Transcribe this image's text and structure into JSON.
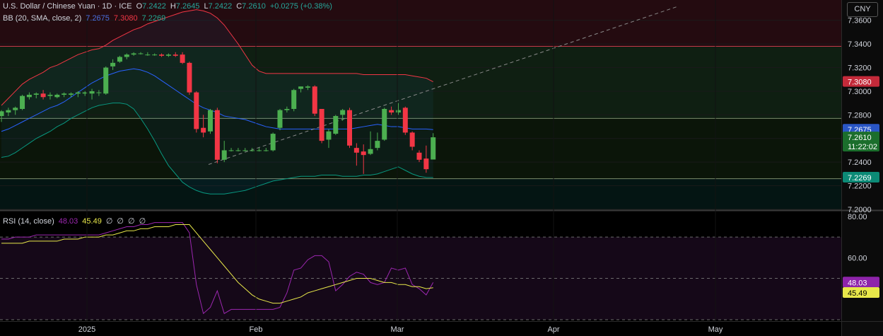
{
  "header": {
    "symbol": "U.S. Dollar / Chinese Yuan · 1D · ICE",
    "ohlc": [
      {
        "label": "O",
        "value": "7.2422"
      },
      {
        "label": "H",
        "value": "7.2645"
      },
      {
        "label": "L",
        "value": "7.2422"
      },
      {
        "label": "C",
        "value": "7.2610"
      }
    ],
    "change": "+0.0275 (+0.38%)",
    "currency": "CNY"
  },
  "bb_legend": {
    "label": "BB (20, SMA, close, 2)",
    "basis": "7.2675",
    "upper": "7.3080",
    "lower": "7.2269"
  },
  "rsi_legend": {
    "label": "RSI (14, close)",
    "rsi": "48.03",
    "rsi_ma": "45.49",
    "extras": [
      "∅",
      "∅",
      "∅",
      "∅"
    ]
  },
  "colors": {
    "up": "#4caf50",
    "down": "#f23645",
    "bb_basis": "#2962ff",
    "bb_upper": "#f23645",
    "bb_lower": "#089981",
    "rsi": "#9c27b0",
    "rsi_ma": "#e8e84a",
    "price_label": "#4caf50",
    "time_label": "#4caf50"
  },
  "price_labels": {
    "bb_upper": "7.3080",
    "bb_basis": "7.2675",
    "last": "7.2610",
    "countdown": "11:22:02",
    "bb_lower": "7.2269"
  },
  "rsi_labels": {
    "rsi": "48.03",
    "rsi_ma": "45.49"
  },
  "chart_data": [
    {
      "type": "candlestick",
      "title": "U.S. Dollar / Chinese Yuan · 1D · ICE",
      "y_ticks": [
        "7.3600",
        "7.3400",
        "7.3200",
        "7.3000",
        "7.2800",
        "7.2600",
        "7.2400",
        "7.2200",
        "7.2000"
      ],
      "ylim": [
        7.2,
        7.37
      ],
      "x_ticks": [
        "2025",
        "Feb",
        "Mar",
        "Apr",
        "May"
      ],
      "horizontal_levels": [
        7.338,
        7.277,
        7.226
      ],
      "candles": [
        {
          "o": 7.279,
          "h": 7.284,
          "l": 7.274,
          "c": 7.283
        },
        {
          "o": 7.282,
          "h": 7.286,
          "l": 7.279,
          "c": 7.284
        },
        {
          "o": 7.284,
          "h": 7.287,
          "l": 7.28,
          "c": 7.286
        },
        {
          "o": 7.285,
          "h": 7.297,
          "l": 7.284,
          "c": 7.296
        },
        {
          "o": 7.295,
          "h": 7.299,
          "l": 7.293,
          "c": 7.297
        },
        {
          "o": 7.297,
          "h": 7.299,
          "l": 7.294,
          "c": 7.298
        },
        {
          "o": 7.298,
          "h": 7.301,
          "l": 7.293,
          "c": 7.295
        },
        {
          "o": 7.296,
          "h": 7.299,
          "l": 7.293,
          "c": 7.297
        },
        {
          "o": 7.295,
          "h": 7.298,
          "l": 7.294,
          "c": 7.297
        },
        {
          "o": 7.297,
          "h": 7.299,
          "l": 7.295,
          "c": 7.298
        },
        {
          "o": 7.297,
          "h": 7.299,
          "l": 7.295,
          "c": 7.298
        },
        {
          "o": 7.298,
          "h": 7.3,
          "l": 7.295,
          "c": 7.299
        },
        {
          "o": 7.298,
          "h": 7.3,
          "l": 7.296,
          "c": 7.299
        },
        {
          "o": 7.298,
          "h": 7.302,
          "l": 7.293,
          "c": 7.3
        },
        {
          "o": 7.299,
          "h": 7.301,
          "l": 7.296,
          "c": 7.299
        },
        {
          "o": 7.298,
          "h": 7.321,
          "l": 7.297,
          "c": 7.32
        },
        {
          "o": 7.321,
          "h": 7.327,
          "l": 7.318,
          "c": 7.324
        },
        {
          "o": 7.325,
          "h": 7.33,
          "l": 7.324,
          "c": 7.329
        },
        {
          "o": 7.329,
          "h": 7.332,
          "l": 7.327,
          "c": 7.331
        },
        {
          "o": 7.331,
          "h": 7.333,
          "l": 7.33,
          "c": 7.332
        },
        {
          "o": 7.332,
          "h": 7.333,
          "l": 7.331,
          "c": 7.332
        },
        {
          "o": 7.331,
          "h": 7.333,
          "l": 7.33,
          "c": 7.331
        },
        {
          "o": 7.331,
          "h": 7.332,
          "l": 7.33,
          "c": 7.331
        },
        {
          "o": 7.331,
          "h": 7.332,
          "l": 7.329,
          "c": 7.33
        },
        {
          "o": 7.33,
          "h": 7.332,
          "l": 7.329,
          "c": 7.331
        },
        {
          "o": 7.331,
          "h": 7.333,
          "l": 7.329,
          "c": 7.33
        },
        {
          "o": 7.331,
          "h": 7.333,
          "l": 7.323,
          "c": 7.324
        },
        {
          "o": 7.324,
          "h": 7.325,
          "l": 7.297,
          "c": 7.299
        },
        {
          "o": 7.299,
          "h": 7.3,
          "l": 7.265,
          "c": 7.268
        },
        {
          "o": 7.269,
          "h": 7.28,
          "l": 7.261,
          "c": 7.265
        },
        {
          "o": 7.266,
          "h": 7.285,
          "l": 7.264,
          "c": 7.284
        },
        {
          "o": 7.284,
          "h": 7.286,
          "l": 7.239,
          "c": 7.242
        },
        {
          "o": 7.242,
          "h": 7.258,
          "l": 7.24,
          "c": 7.25
        },
        {
          "o": 7.25,
          "h": 7.252,
          "l": 7.249,
          "c": 7.25
        },
        {
          "o": 7.25,
          "h": 7.252,
          "l": 7.249,
          "c": 7.25
        },
        {
          "o": 7.25,
          "h": 7.252,
          "l": 7.249,
          "c": 7.25
        },
        {
          "o": 7.25,
          "h": 7.252,
          "l": 7.249,
          "c": 7.25
        },
        {
          "o": 7.25,
          "h": 7.252,
          "l": 7.249,
          "c": 7.25
        },
        {
          "o": 7.25,
          "h": 7.252,
          "l": 7.249,
          "c": 7.25
        },
        {
          "o": 7.25,
          "h": 7.265,
          "l": 7.249,
          "c": 7.264
        },
        {
          "o": 7.269,
          "h": 7.285,
          "l": 7.267,
          "c": 7.284
        },
        {
          "o": 7.284,
          "h": 7.287,
          "l": 7.282,
          "c": 7.285
        },
        {
          "o": 7.285,
          "h": 7.302,
          "l": 7.283,
          "c": 7.301
        },
        {
          "o": 7.302,
          "h": 7.304,
          "l": 7.299,
          "c": 7.304
        },
        {
          "o": 7.303,
          "h": 7.305,
          "l": 7.301,
          "c": 7.304
        },
        {
          "o": 7.304,
          "h": 7.305,
          "l": 7.279,
          "c": 7.281
        },
        {
          "o": 7.285,
          "h": 7.285,
          "l": 7.256,
          "c": 7.258
        },
        {
          "o": 7.259,
          "h": 7.268,
          "l": 7.252,
          "c": 7.266
        },
        {
          "o": 7.264,
          "h": 7.28,
          "l": 7.263,
          "c": 7.279
        },
        {
          "o": 7.28,
          "h": 7.285,
          "l": 7.275,
          "c": 7.284
        },
        {
          "o": 7.284,
          "h": 7.286,
          "l": 7.252,
          "c": 7.254
        },
        {
          "o": 7.252,
          "h": 7.256,
          "l": 7.237,
          "c": 7.248
        },
        {
          "o": 7.249,
          "h": 7.255,
          "l": 7.23,
          "c": 7.246
        },
        {
          "o": 7.247,
          "h": 7.266,
          "l": 7.246,
          "c": 7.251
        },
        {
          "o": 7.252,
          "h": 7.265,
          "l": 7.25,
          "c": 7.258
        },
        {
          "o": 7.259,
          "h": 7.286,
          "l": 7.258,
          "c": 7.285
        },
        {
          "o": 7.284,
          "h": 7.287,
          "l": 7.28,
          "c": 7.282
        },
        {
          "o": 7.282,
          "h": 7.29,
          "l": 7.28,
          "c": 7.284
        },
        {
          "o": 7.286,
          "h": 7.287,
          "l": 7.263,
          "c": 7.265
        },
        {
          "o": 7.265,
          "h": 7.266,
          "l": 7.25,
          "c": 7.253
        },
        {
          "o": 7.248,
          "h": 7.25,
          "l": 7.24,
          "c": 7.242
        },
        {
          "o": 7.243,
          "h": 7.254,
          "l": 7.231,
          "c": 7.234
        },
        {
          "o": 7.2422,
          "h": 7.2645,
          "l": 7.2422,
          "c": 7.261
        }
      ],
      "bb_upper": [
        7.288,
        7.294,
        7.3,
        7.306,
        7.31,
        7.313,
        7.316,
        7.32,
        7.322,
        7.325,
        7.328,
        7.331,
        7.333,
        7.335,
        7.336,
        7.339,
        7.343,
        7.346,
        7.349,
        7.352,
        7.354,
        7.357,
        7.359,
        7.361,
        7.363,
        7.365,
        7.367,
        7.368,
        7.369,
        7.368,
        7.366,
        7.362,
        7.356,
        7.348,
        7.34,
        7.331,
        7.322,
        7.317,
        7.315,
        7.315,
        7.315,
        7.315,
        7.315,
        7.315,
        7.315,
        7.315,
        7.315,
        7.315,
        7.315,
        7.315,
        7.315,
        7.315,
        7.314,
        7.314,
        7.314,
        7.314,
        7.314,
        7.314,
        7.314,
        7.313,
        7.312,
        7.311,
        7.308
      ],
      "bb_basis": [
        7.266,
        7.268,
        7.271,
        7.274,
        7.277,
        7.28,
        7.283,
        7.286,
        7.288,
        7.291,
        7.295,
        7.299,
        7.303,
        7.307,
        7.31,
        7.313,
        7.315,
        7.317,
        7.318,
        7.319,
        7.318,
        7.316,
        7.313,
        7.309,
        7.305,
        7.301,
        7.297,
        7.293,
        7.289,
        7.286,
        7.284,
        7.282,
        7.279,
        7.278,
        7.277,
        7.276,
        7.274,
        7.272,
        7.27,
        7.269,
        7.268,
        7.268,
        7.268,
        7.268,
        7.268,
        7.268,
        7.268,
        7.268,
        7.268,
        7.268,
        7.268,
        7.269,
        7.27,
        7.271,
        7.272,
        7.271,
        7.27,
        7.27,
        7.269,
        7.268,
        7.268,
        7.268,
        7.2675
      ],
      "bb_lower": [
        7.244,
        7.245,
        7.248,
        7.252,
        7.256,
        7.26,
        7.263,
        7.266,
        7.27,
        7.273,
        7.277,
        7.28,
        7.283,
        7.286,
        7.288,
        7.289,
        7.29,
        7.29,
        7.289,
        7.285,
        7.277,
        7.268,
        7.258,
        7.247,
        7.237,
        7.23,
        7.223,
        7.219,
        7.216,
        7.214,
        7.213,
        7.213,
        7.213,
        7.214,
        7.215,
        7.216,
        7.218,
        7.22,
        7.222,
        7.224,
        7.225,
        7.226,
        7.227,
        7.228,
        7.228,
        7.228,
        7.229,
        7.229,
        7.229,
        7.228,
        7.228,
        7.228,
        7.229,
        7.229,
        7.23,
        7.232,
        7.234,
        7.236,
        7.233,
        7.23,
        7.228,
        7.227,
        7.2269
      ]
    },
    {
      "type": "line",
      "title": "RSI (14, close)",
      "y_ticks": [
        "80.00",
        "60.00"
      ],
      "ylim": [
        30,
        82
      ],
      "bands": [
        70,
        50,
        30
      ],
      "series": [
        {
          "name": "RSI",
          "values": [
            69,
            69,
            70,
            70,
            70,
            71,
            71,
            71,
            71,
            71,
            71,
            71,
            71,
            71,
            71,
            72,
            73,
            74,
            75,
            75,
            76,
            76,
            77,
            77,
            77,
            77,
            77,
            72,
            47,
            33,
            36,
            44,
            33,
            35,
            35,
            35,
            35,
            35,
            35,
            35,
            36,
            43,
            54,
            55,
            59,
            61,
            61,
            58,
            44,
            47,
            51,
            53,
            52,
            48,
            47,
            48,
            55,
            54,
            55,
            47,
            45,
            42,
            48.03
          ]
        },
        {
          "name": "RSI-based MA",
          "values": [
            67,
            67,
            67,
            67,
            68,
            68,
            68,
            68,
            68,
            69,
            69,
            69,
            70,
            70,
            70,
            71,
            71,
            72,
            73,
            73,
            74,
            74,
            75,
            75,
            75,
            76,
            76,
            76,
            72,
            68,
            64,
            60,
            56,
            52,
            48,
            45,
            42,
            40,
            39,
            38,
            38,
            39,
            40,
            41,
            43,
            44,
            45,
            46,
            47,
            48,
            49,
            50,
            50,
            50,
            49,
            48,
            48,
            47,
            47,
            46,
            46,
            45,
            45.49
          ]
        }
      ]
    }
  ]
}
